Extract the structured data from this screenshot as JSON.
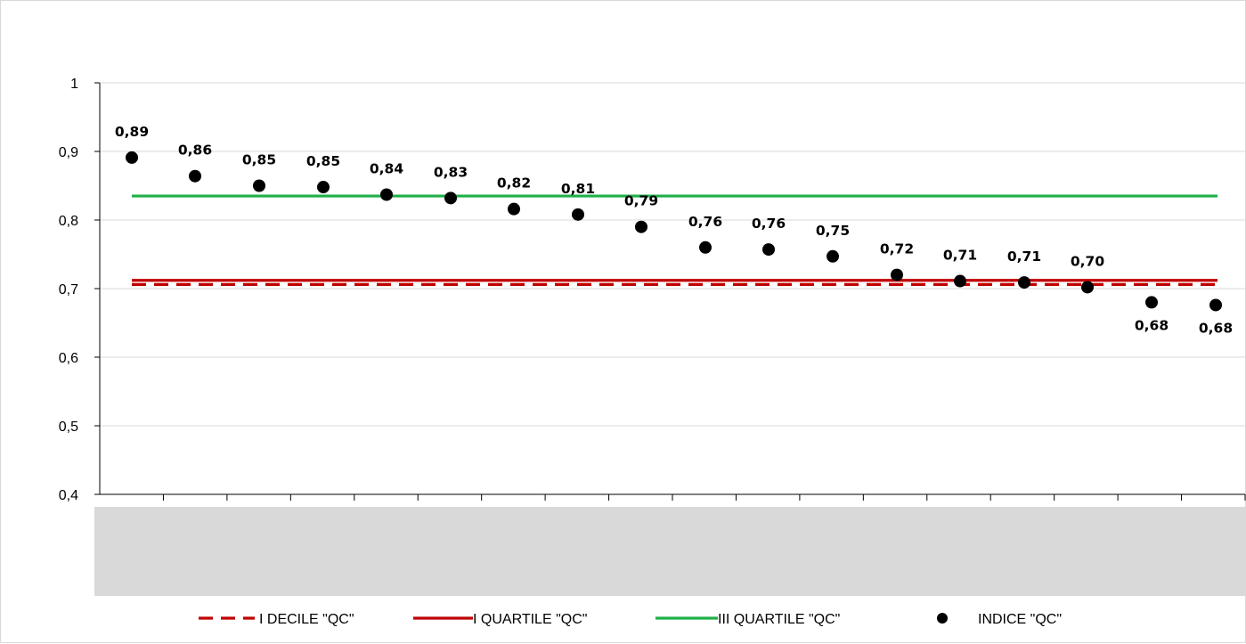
{
  "chart_data": {
    "type": "scatter",
    "title": "",
    "xlabel": "",
    "ylabel": "",
    "ylim": [
      0.4,
      1
    ],
    "y_ticks": [
      {
        "value": 0.4,
        "label": "0,4"
      },
      {
        "value": 0.5,
        "label": "0,5"
      },
      {
        "value": 0.6,
        "label": "0,6"
      },
      {
        "value": 0.7,
        "label": "0,7"
      },
      {
        "value": 0.8,
        "label": "0,8"
      },
      {
        "value": 0.9,
        "label": "0,9"
      },
      {
        "value": 1,
        "label": "1"
      }
    ],
    "grid": true,
    "legend_position": "bottom",
    "category_count": 18,
    "points": [
      {
        "value": 0.891,
        "label": "0,89",
        "label_position": "above"
      },
      {
        "value": 0.864,
        "label": "0,86",
        "label_position": "above"
      },
      {
        "value": 0.85,
        "label": "0,85",
        "label_position": "above"
      },
      {
        "value": 0.848,
        "label": "0,85",
        "label_position": "above"
      },
      {
        "value": 0.837,
        "label": "0,84",
        "label_position": "above"
      },
      {
        "value": 0.832,
        "label": "0,83",
        "label_position": "above"
      },
      {
        "value": 0.816,
        "label": "0,82",
        "label_position": "above"
      },
      {
        "value": 0.808,
        "label": "0,81",
        "label_position": "above"
      },
      {
        "value": 0.79,
        "label": "0,79",
        "label_position": "above"
      },
      {
        "value": 0.76,
        "label": "0,76",
        "label_position": "above"
      },
      {
        "value": 0.757,
        "label": "0,76",
        "label_position": "above"
      },
      {
        "value": 0.747,
        "label": "0,75",
        "label_position": "above"
      },
      {
        "value": 0.72,
        "label": "0,72",
        "label_position": "above"
      },
      {
        "value": 0.711,
        "label": "0,71",
        "label_position": "above"
      },
      {
        "value": 0.709,
        "label": "0,71",
        "label_position": "above"
      },
      {
        "value": 0.702,
        "label": "0,70",
        "label_position": "above"
      },
      {
        "value": 0.68,
        "label": "0,68",
        "label_position": "below"
      },
      {
        "value": 0.676,
        "label": "0,68",
        "label_position": "below"
      }
    ],
    "reference_lines": [
      {
        "name": "I DECILE \"QC\"",
        "value": 0.706,
        "color": "#c00000",
        "dashed": true
      },
      {
        "name": "I QUARTILE \"QC\"",
        "value": 0.712,
        "color": "#c00000",
        "dashed": false
      },
      {
        "name": "III QUARTILE \"QC\"",
        "value": 0.835,
        "color": "#1fb04a",
        "dashed": false
      }
    ],
    "series_marker": {
      "name": "INDICE \"QC\"",
      "color": "#000000"
    },
    "band_color": "#d9d9d9"
  }
}
